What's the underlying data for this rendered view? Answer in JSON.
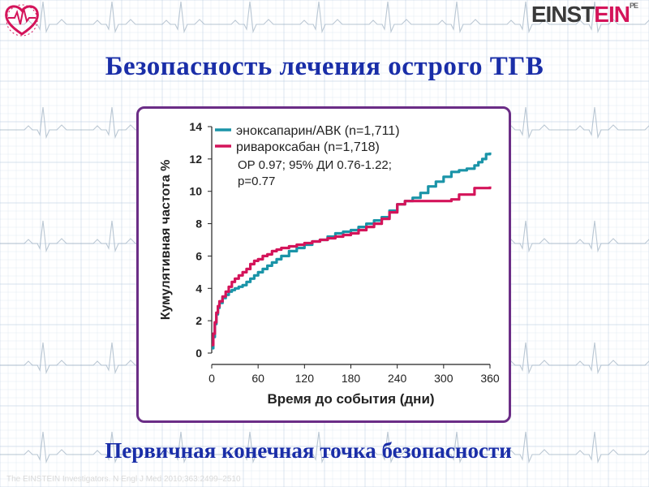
{
  "slide": {
    "title": "Безопасность лечения острого ТГВ",
    "subtitle": "Первичная конечная точка безопасности",
    "citation": "The EINSTEIN Investigators. N Engl J Med 2010;363:2499–2510",
    "logo_text_1": "EINST",
    "logo_text_2": "EIN",
    "logo_mark": "PE",
    "heart_logo": "heart-ecg-icon",
    "colors": {
      "title": "#1a2ea8",
      "frame": "#6b2d86",
      "ecg_grid": "#b8cbe0",
      "ecg_trace": "#8da3b8"
    }
  },
  "chart_data": {
    "type": "line",
    "step": true,
    "xlabel": "Время до события (дни)",
    "ylabel": "Кумулятивная частота %",
    "xlim": [
      0,
      360
    ],
    "ylim": [
      0,
      14
    ],
    "xticks": [
      0,
      60,
      120,
      180,
      240,
      300,
      360
    ],
    "yticks": [
      0,
      2,
      4,
      6,
      8,
      10,
      12,
      14
    ],
    "grid": false,
    "legend_position": "top-left",
    "annotation": [
      "OP 0.97; 95% ДИ 0.76-1.22;",
      "p=0.77"
    ],
    "series": [
      {
        "name": "эноксапарин/АВК (n=1,711)",
        "color": "#1a94a8",
        "x": [
          0,
          2,
          4,
          6,
          8,
          10,
          14,
          18,
          22,
          26,
          30,
          35,
          40,
          45,
          50,
          55,
          60,
          66,
          72,
          78,
          84,
          90,
          100,
          110,
          120,
          130,
          140,
          150,
          160,
          170,
          180,
          190,
          200,
          210,
          220,
          230,
          240,
          250,
          260,
          270,
          280,
          290,
          300,
          310,
          320,
          330,
          340,
          345,
          350,
          355,
          360
        ],
        "y": [
          0.3,
          1.0,
          1.8,
          2.4,
          2.8,
          3.1,
          3.4,
          3.6,
          3.8,
          3.9,
          4.0,
          4.1,
          4.2,
          4.4,
          4.6,
          4.8,
          5.0,
          5.2,
          5.4,
          5.6,
          5.8,
          6.0,
          6.3,
          6.5,
          6.7,
          6.9,
          7.0,
          7.2,
          7.4,
          7.5,
          7.6,
          7.8,
          8.0,
          8.2,
          8.4,
          8.8,
          9.2,
          9.4,
          9.6,
          9.9,
          10.3,
          10.6,
          10.9,
          11.2,
          11.3,
          11.4,
          11.6,
          11.8,
          12.0,
          12.3,
          12.4
        ]
      },
      {
        "name": "ривароксабан (n=1,718)",
        "color": "#d4145a",
        "x": [
          0,
          2,
          4,
          6,
          8,
          10,
          14,
          18,
          22,
          26,
          30,
          35,
          40,
          45,
          50,
          55,
          60,
          66,
          72,
          78,
          84,
          90,
          100,
          110,
          120,
          130,
          140,
          150,
          160,
          170,
          180,
          190,
          200,
          210,
          220,
          230,
          240,
          250,
          260,
          270,
          280,
          300,
          310,
          320,
          340,
          360
        ],
        "y": [
          0.5,
          1.2,
          1.9,
          2.5,
          2.9,
          3.2,
          3.5,
          3.8,
          4.1,
          4.4,
          4.6,
          4.8,
          5.0,
          5.2,
          5.5,
          5.7,
          5.8,
          6.0,
          6.1,
          6.3,
          6.4,
          6.5,
          6.6,
          6.7,
          6.8,
          6.9,
          7.0,
          7.1,
          7.2,
          7.3,
          7.4,
          7.6,
          7.8,
          8.0,
          8.3,
          8.7,
          9.2,
          9.4,
          9.4,
          9.4,
          9.4,
          9.4,
          9.5,
          9.8,
          10.2,
          10.3
        ]
      }
    ]
  }
}
